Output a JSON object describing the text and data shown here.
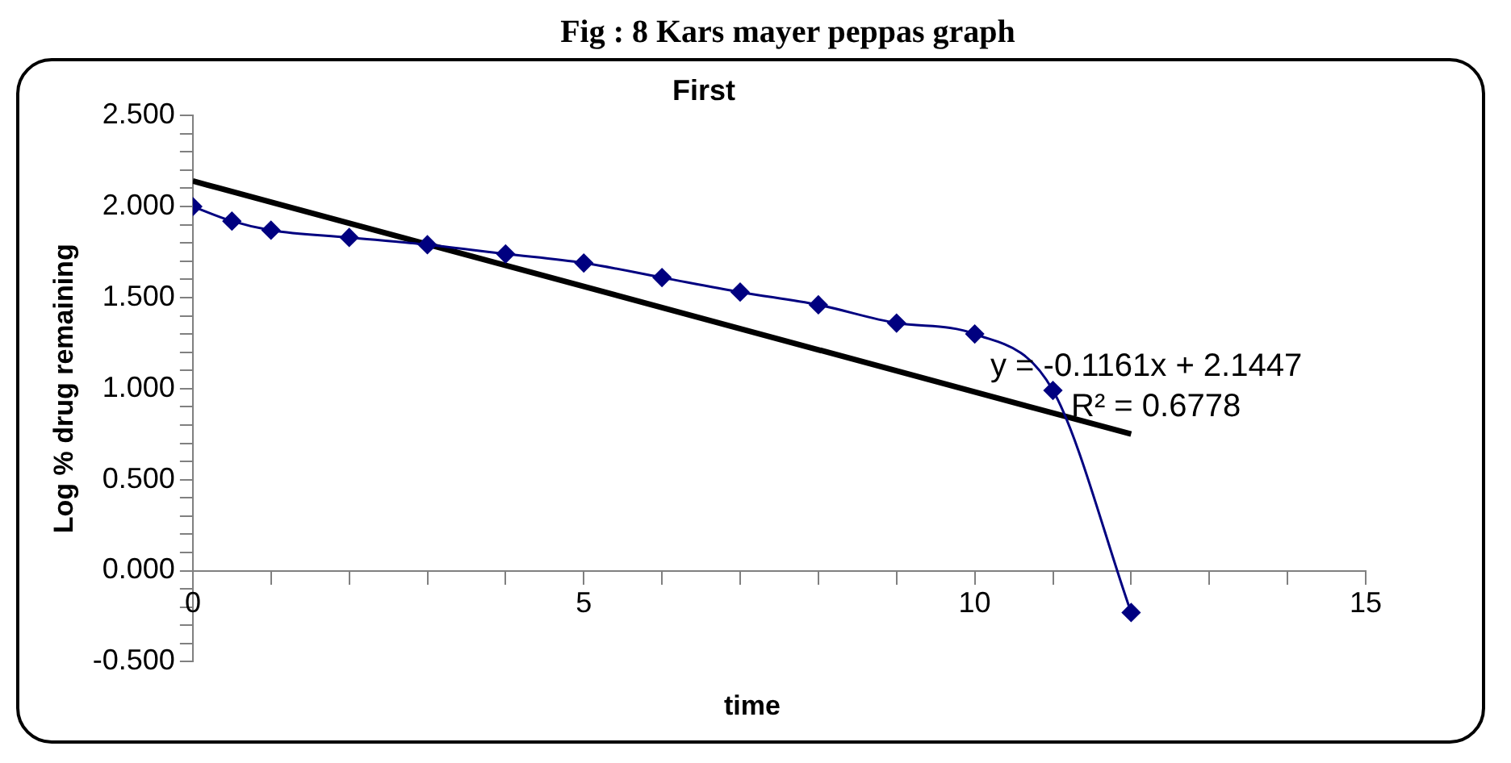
{
  "chart_data": {
    "type": "scatter",
    "title": "First",
    "xlabel": "time",
    "ylabel": "Log % drug remaining",
    "annotations": [
      "Fig : 8 Kars mayer peppas graph",
      "y = -0.1161x + 2.1447",
      "R² = 0.6778"
    ],
    "series": [
      {
        "type": "line",
        "color": "#000080",
        "marker": "diamond",
        "x": [
          0,
          0.5,
          1,
          2,
          3,
          4,
          5,
          6,
          7,
          8,
          9,
          10,
          11,
          12
        ],
        "values": [
          2.0,
          1.92,
          1.87,
          1.83,
          1.79,
          1.74,
          1.69,
          1.61,
          1.53,
          1.46,
          1.36,
          1.3,
          0.99,
          -0.23
        ]
      },
      {
        "type": "line",
        "color": "#000000",
        "marker": "none",
        "x": [
          0,
          12
        ],
        "values": [
          2.14,
          0.75
        ]
      }
    ],
    "xlim": [
      0,
      15
    ],
    "ylim": [
      -0.5,
      2.5
    ],
    "xticks": [
      0,
      {
        "value": 1,
        "label": null
      },
      {
        "value": 2,
        "label": null
      },
      {
        "value": 3,
        "label": null
      },
      {
        "value": 4,
        "label": null
      },
      5,
      {
        "value": 6,
        "label": null
      },
      {
        "value": 7,
        "label": null
      },
      {
        "value": 8,
        "label": null
      },
      {
        "value": 9,
        "label": null
      },
      10,
      {
        "value": 11,
        "label": null
      },
      {
        "value": 12,
        "label": null
      },
      {
        "value": 13,
        "label": null
      },
      {
        "value": 14,
        "label": null
      },
      15
    ],
    "yticks": [
      {
        "value": -0.5,
        "label": "-0.500"
      },
      {
        "value": -0.4,
        "label": null
      },
      {
        "value": -0.3,
        "label": null
      },
      {
        "value": -0.2,
        "label": null
      },
      {
        "value": -0.1,
        "label": null
      },
      {
        "value": 0,
        "label": "0.000"
      },
      {
        "value": 0.1,
        "label": null
      },
      {
        "value": 0.2,
        "label": null
      },
      {
        "value": 0.3,
        "label": null
      },
      {
        "value": 0.4,
        "label": null
      },
      {
        "value": 0.5,
        "label": "0.500"
      },
      {
        "value": 0.6,
        "label": null
      },
      {
        "value": 0.7,
        "label": null
      },
      {
        "value": 0.8,
        "label": null
      },
      {
        "value": 0.9,
        "label": null
      },
      {
        "value": 1,
        "label": "1.000"
      },
      {
        "value": 1.1,
        "label": null
      },
      {
        "value": 1.2,
        "label": null
      },
      {
        "value": 1.3,
        "label": null
      },
      {
        "value": 1.4,
        "label": null
      },
      {
        "value": 1.5,
        "label": "1.500"
      },
      {
        "value": 1.6,
        "label": null
      },
      {
        "value": 1.7,
        "label": null
      },
      {
        "value": 1.8,
        "label": null
      },
      {
        "value": 1.9,
        "label": null
      },
      {
        "value": 2,
        "label": "2.000"
      },
      {
        "value": 2.1,
        "label": null
      },
      {
        "value": 2.2,
        "label": null
      },
      {
        "value": 2.3,
        "label": null
      },
      {
        "value": 2.4,
        "label": null
      },
      {
        "value": 2.5,
        "label": "2.500"
      }
    ],
    "grid": false,
    "legend": false
  }
}
